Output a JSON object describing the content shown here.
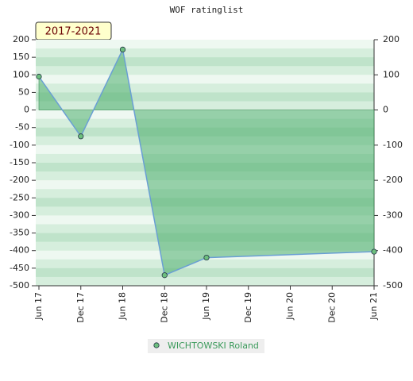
{
  "chart_data": {
    "type": "line",
    "title": "WOF ratinglist",
    "badge": "2017-2021",
    "categories": [
      "Jun 17",
      "Dec 17",
      "Jun 18",
      "Dec 18",
      "Jun 19",
      "Dec 19",
      "Jun 20",
      "Dec 20",
      "Jun 21"
    ],
    "connect_gaps": true,
    "fill_to_zero": true,
    "series": [
      {
        "name": "WICHTOWSKI Roland",
        "color": "#6dbf7e",
        "line_color": "#6a9fd4",
        "values": [
          95,
          -75,
          172,
          -470,
          -420,
          null,
          null,
          null,
          -403
        ]
      }
    ],
    "ylim": [
      -500,
      200
    ],
    "yticks": [
      200,
      150,
      100,
      50,
      0,
      -50,
      -100,
      -150,
      -200,
      -250,
      -300,
      -350,
      -400,
      -450,
      -500
    ],
    "y2lim": [
      -500,
      200
    ],
    "y2ticks": [
      200,
      100,
      0,
      -100,
      -200,
      -300,
      -400,
      -500
    ],
    "legend": "bottom"
  }
}
